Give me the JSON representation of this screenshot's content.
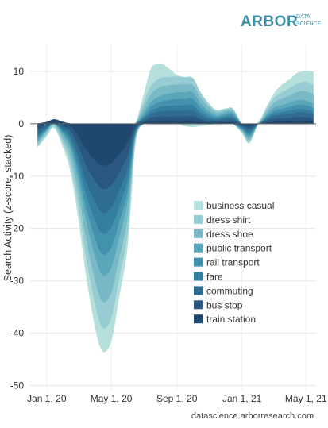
{
  "brand": {
    "name": "ARBOR",
    "tag_line1": "DATA",
    "tag_line2": "SCIENCE",
    "color": "#3a8fa8"
  },
  "credit": "datascience.arborresearch.com",
  "chart_data": {
    "type": "area",
    "stacked": true,
    "ylabel": "Search Activity (z-score, stacked)",
    "xlabel": "",
    "ylim": [
      -51,
      15
    ],
    "yticks": [
      10,
      0,
      -10,
      -20,
      -30,
      -40,
      -50
    ],
    "x_domain": [
      "2019-12-01",
      "2021-05-20"
    ],
    "xticks": [
      {
        "date": "2020-01-01",
        "label": "Jan 1, 20"
      },
      {
        "date": "2020-05-01",
        "label": "May 1, 20"
      },
      {
        "date": "2020-09-01",
        "label": "Sep 1, 20"
      },
      {
        "date": "2021-01-01",
        "label": "Jan 1, 21"
      },
      {
        "date": "2021-05-01",
        "label": "May 1, 21"
      }
    ],
    "grid": true,
    "legend_position": "right",
    "x": [
      "2019-12-15",
      "2020-01-01",
      "2020-01-15",
      "2020-02-01",
      "2020-02-15",
      "2020-03-01",
      "2020-03-15",
      "2020-04-01",
      "2020-04-15",
      "2020-05-01",
      "2020-05-15",
      "2020-06-01",
      "2020-06-15",
      "2020-07-01",
      "2020-07-15",
      "2020-08-01",
      "2020-08-15",
      "2020-09-01",
      "2020-09-15",
      "2020-10-01",
      "2020-10-15",
      "2020-11-01",
      "2020-11-15",
      "2020-12-01",
      "2020-12-15",
      "2021-01-01",
      "2021-01-15",
      "2021-02-01",
      "2021-02-15",
      "2021-03-01",
      "2021-03-15",
      "2021-04-01",
      "2021-04-15",
      "2021-05-01",
      "2021-05-15"
    ],
    "series": [
      {
        "name": "train station",
        "color": "#20486e",
        "values": [
          -0.5,
          0.3,
          0.8,
          0.3,
          -0.5,
          -2.5,
          -5,
          -7,
          -8,
          -7.5,
          -6,
          -3.5,
          -0.5,
          0.2,
          0.5,
          0.6,
          0.6,
          0.6,
          0.6,
          0.6,
          0.4,
          0.2,
          0.2,
          0.3,
          0.3,
          -0.2,
          -0.4,
          0,
          0.2,
          0.4,
          0.4,
          0.5,
          0.6,
          0.5,
          0.4
        ]
      },
      {
        "name": "bus stop",
        "color": "#29577f",
        "values": [
          -0.8,
          -0.3,
          0,
          -0.5,
          -1,
          -2,
          -3,
          -4,
          -4.5,
          -4.2,
          -3.5,
          -2.5,
          -0.5,
          0.3,
          0.6,
          0.8,
          0.8,
          0.8,
          0.8,
          0.8,
          0.5,
          0.3,
          0.2,
          0.3,
          0.3,
          -0.2,
          -0.5,
          0,
          0.3,
          0.5,
          0.6,
          0.6,
          0.7,
          0.7,
          0.6
        ]
      },
      {
        "name": "commuting",
        "color": "#2f6d90",
        "values": [
          -0.8,
          -0.4,
          0,
          -0.5,
          -1,
          -2,
          -3,
          -4,
          -4.5,
          -4.3,
          -3.5,
          -2.5,
          -0.5,
          0.4,
          0.8,
          1,
          1.1,
          1.1,
          1.1,
          1.1,
          0.7,
          0.4,
          0.3,
          0.4,
          0.4,
          -0.2,
          -0.5,
          0,
          0.3,
          0.6,
          0.7,
          0.8,
          0.9,
          0.9,
          0.8
        ]
      },
      {
        "name": "fare",
        "color": "#347f9f",
        "values": [
          -0.5,
          -0.2,
          0,
          -0.4,
          -0.8,
          -1.5,
          -2.5,
          -3.5,
          -4,
          -3.8,
          -3,
          -2,
          -0.3,
          0.3,
          0.6,
          0.8,
          0.9,
          1,
          1,
          1,
          0.6,
          0.4,
          0.3,
          0.3,
          0.3,
          -0.2,
          -0.4,
          0,
          0.2,
          0.4,
          0.5,
          0.6,
          0.6,
          0.6,
          0.5
        ]
      },
      {
        "name": "rail transport",
        "color": "#4292ad",
        "values": [
          -0.4,
          -0.2,
          0,
          -0.4,
          -0.8,
          -1.5,
          -2.5,
          -3.5,
          -4,
          -3.8,
          -3,
          -2,
          -0.3,
          0.4,
          0.8,
          1,
          1.1,
          1.2,
          1.2,
          1.2,
          0.8,
          0.5,
          0.3,
          0.4,
          0.4,
          -0.2,
          -0.4,
          0,
          0.3,
          0.5,
          0.6,
          0.7,
          0.8,
          0.8,
          0.7
        ]
      },
      {
        "name": "public transport",
        "color": "#5aa6ba",
        "values": [
          -0.4,
          -0.2,
          0,
          -0.4,
          -0.8,
          -1.5,
          -2.5,
          -3.5,
          -4,
          -3.8,
          -3,
          -2,
          -0.3,
          0.5,
          0.9,
          1.1,
          1.2,
          1.3,
          1.3,
          1.3,
          0.9,
          0.5,
          0.3,
          0.4,
          0.4,
          -0.2,
          -0.4,
          0,
          0.3,
          0.6,
          0.7,
          0.8,
          0.9,
          0.9,
          0.8
        ]
      },
      {
        "name": "dress shoe",
        "color": "#78b9c5",
        "values": [
          -0.4,
          -0.3,
          -0.2,
          -0.8,
          -1.5,
          -2.5,
          -3.5,
          -4.5,
          -5,
          -4.8,
          -4,
          -3,
          -0.5,
          1,
          1.5,
          1.7,
          1.6,
          1.5,
          1.5,
          1.4,
          1.1,
          0.8,
          0.5,
          0.4,
          0.4,
          -0.2,
          -0.4,
          0.1,
          0.5,
          0.9,
          1.2,
          1.4,
          1.6,
          1.8,
          1.8
        ]
      },
      {
        "name": "dress shirt",
        "color": "#97cdd2",
        "values": [
          -0.4,
          -0.4,
          -0.3,
          -0.8,
          -1.5,
          -2.5,
          -3.5,
          -4.5,
          -5,
          -4.8,
          -4,
          -3,
          -0.5,
          1,
          1.6,
          1.7,
          1.6,
          1.5,
          1.4,
          1.3,
          1,
          0.6,
          0.4,
          0.3,
          0.3,
          -0.2,
          -0.4,
          0.1,
          0.5,
          0.9,
          1.2,
          1.4,
          1.6,
          1.8,
          1.8
        ]
      },
      {
        "name": "business casual",
        "color": "#b5dfda",
        "values": [
          -0.3,
          -0.4,
          -0.3,
          -0.8,
          -1.4,
          -2.5,
          -3.5,
          -4.5,
          -4.5,
          -4.5,
          -3.5,
          -2.5,
          -0.6,
          1.5,
          3.3,
          2.8,
          1.8,
          0.3,
          -0.4,
          -0.6,
          -0.4,
          -0.2,
          0.1,
          0.1,
          0.1,
          -0.2,
          -0.3,
          0.1,
          0.4,
          0.8,
          1.4,
          1.7,
          2,
          2.1,
          2.5
        ]
      }
    ]
  }
}
